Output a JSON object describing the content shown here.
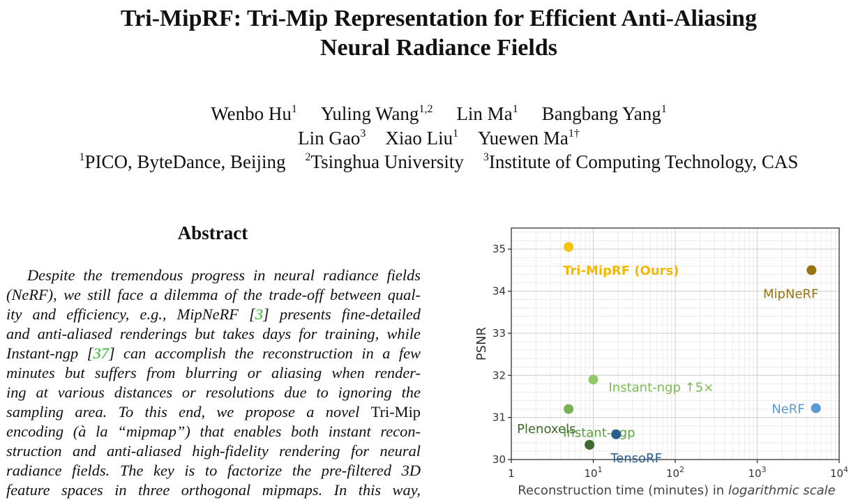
{
  "paper": {
    "title_line1": "Tri-MipRF: Tri-Mip Representation for Efficient Anti-Aliasing",
    "title_line2": "Neural Radiance Fields",
    "authors_line1": [
      {
        "name": "Wenbo Hu",
        "sup": "1"
      },
      {
        "name": "Yuling Wang",
        "sup": "1,2"
      },
      {
        "name": "Lin Ma",
        "sup": "1"
      },
      {
        "name": "Bangbang Yang",
        "sup": "1"
      }
    ],
    "authors_line2": [
      {
        "name": "Lin Gao",
        "sup": "3"
      },
      {
        "name": "Xiao Liu",
        "sup": "1"
      },
      {
        "name": "Yuewen Ma",
        "sup": "1†"
      }
    ],
    "affiliations": [
      {
        "sup": "1",
        "name": "PICO, ByteDance, Beijing"
      },
      {
        "sup": "2",
        "name": "Tsinghua University"
      },
      {
        "sup": "3",
        "name": "Institute of Computing Technology, CAS"
      }
    ],
    "abstract_heading": "Abstract",
    "abstract_lines": [
      [
        {
          "t": "Despite the tremendous progress in neural radiance fields"
        }
      ],
      [
        {
          "t": "(NeRF), we still face a dilemma of the trade-off between qual-"
        }
      ],
      [
        {
          "t": "ity and efficiency, e.g., MipNeRF ["
        },
        {
          "t": "3",
          "cls": "cite"
        },
        {
          "t": "] presents fine-detailed"
        }
      ],
      [
        {
          "t": "and anti-aliased renderings but takes days for training, while"
        }
      ],
      [
        {
          "t": "Instant-ngp ["
        },
        {
          "t": "37",
          "cls": "cite"
        },
        {
          "t": "] can accomplish the reconstruction in a few"
        }
      ],
      [
        {
          "t": "minutes but suffers from blurring or aliasing when render-"
        }
      ],
      [
        {
          "t": "ing at various distances or resolutions due to ignoring the"
        }
      ],
      [
        {
          "t": "sampling area.  To this end, we propose a novel "
        },
        {
          "t": "Tri-Mip",
          "cls": "up"
        }
      ],
      [
        {
          "t": "encoding (à la “mipmap”) that enables both instant recon-"
        }
      ],
      [
        {
          "t": "struction and anti-aliased high-fidelity rendering for neural"
        }
      ],
      [
        {
          "t": "radiance fields.  The key is to factorize the pre-filtered 3D"
        }
      ],
      [
        {
          "t": "feature spaces in three orthogonal mipmaps.  In this way,"
        }
      ]
    ]
  },
  "chart_data": {
    "type": "scatter",
    "xlabel_plain": "Reconstruction time (minutes) in ",
    "xlabel_italic": "logarithmic scale",
    "ylabel": "PSNR",
    "x_scale": "log",
    "xlim": [
      1,
      10000
    ],
    "ylim": [
      30,
      35.5
    ],
    "grid": true,
    "x_ticks": [
      {
        "value": 1,
        "base": "1",
        "exp": ""
      },
      {
        "value": 10,
        "base": "10",
        "exp": "1"
      },
      {
        "value": 100,
        "base": "10",
        "exp": "2"
      },
      {
        "value": 1000,
        "base": "10",
        "exp": "3"
      },
      {
        "value": 10000,
        "base": "10",
        "exp": "4"
      }
    ],
    "y_ticks": [
      30,
      31,
      32,
      33,
      34,
      35
    ],
    "points": [
      {
        "label": "Tri-MipRF (Ours)",
        "x": 5,
        "y": 35.05,
        "color": "#f6c30f",
        "label_color": "#f5b800",
        "bold": true,
        "label_pos": "below-right"
      },
      {
        "label": "MipNeRF",
        "x": 4600,
        "y": 34.5,
        "color": "#9a7410",
        "label_color": "#9a7410",
        "bold": false,
        "label_pos": "below-left"
      },
      {
        "label": "Instant-ngp ↑5×",
        "x": 10,
        "y": 31.9,
        "color": "#8fc96a",
        "label_color": "#7cba55",
        "bold": false,
        "label_pos": "right"
      },
      {
        "label": "Instant-ngp",
        "x": 5,
        "y": 31.2,
        "color": "#77b257",
        "label_color": "#5aa13d",
        "bold": false,
        "label_pos": "below-right"
      },
      {
        "label": "NeRF",
        "x": 5200,
        "y": 31.22,
        "color": "#5b9bd5",
        "label_color": "#5b9bd5",
        "bold": false,
        "label_pos": "left"
      },
      {
        "label": "TensoRF",
        "x": 19,
        "y": 30.6,
        "color": "#2b5f91",
        "label_color": "#2b5f91",
        "bold": false,
        "label_pos": "below-right"
      },
      {
        "label": "Plenoxels",
        "x": 9,
        "y": 30.35,
        "color": "#3f6a2c",
        "label_color": "#3f6a2c",
        "bold": false,
        "label_pos": "above-left"
      }
    ]
  }
}
